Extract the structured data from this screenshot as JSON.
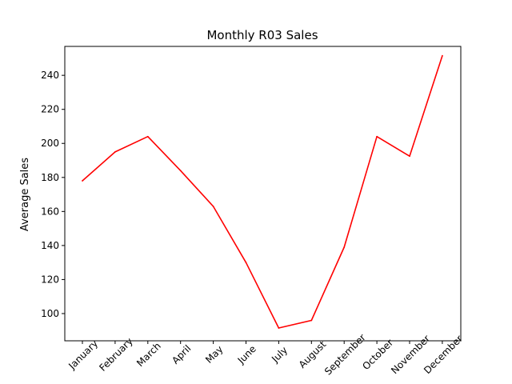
{
  "chart_data": {
    "type": "line",
    "title": "Monthly R03 Sales",
    "xlabel": "",
    "ylabel": "Average Sales",
    "categories": [
      "January",
      "February",
      "March",
      "April",
      "May",
      "June",
      "July",
      "August",
      "September",
      "October",
      "November",
      "December"
    ],
    "series": [
      {
        "values": [
          178,
          195,
          204,
          184,
          163,
          130,
          91.5,
          96,
          139,
          204,
          192.5,
          251.5
        ],
        "color": "#ff0000"
      }
    ],
    "ylim": [
      84,
      257
    ],
    "yticks": [
      100,
      120,
      140,
      160,
      180,
      200,
      220,
      240
    ],
    "grid": false,
    "legend": "none"
  }
}
